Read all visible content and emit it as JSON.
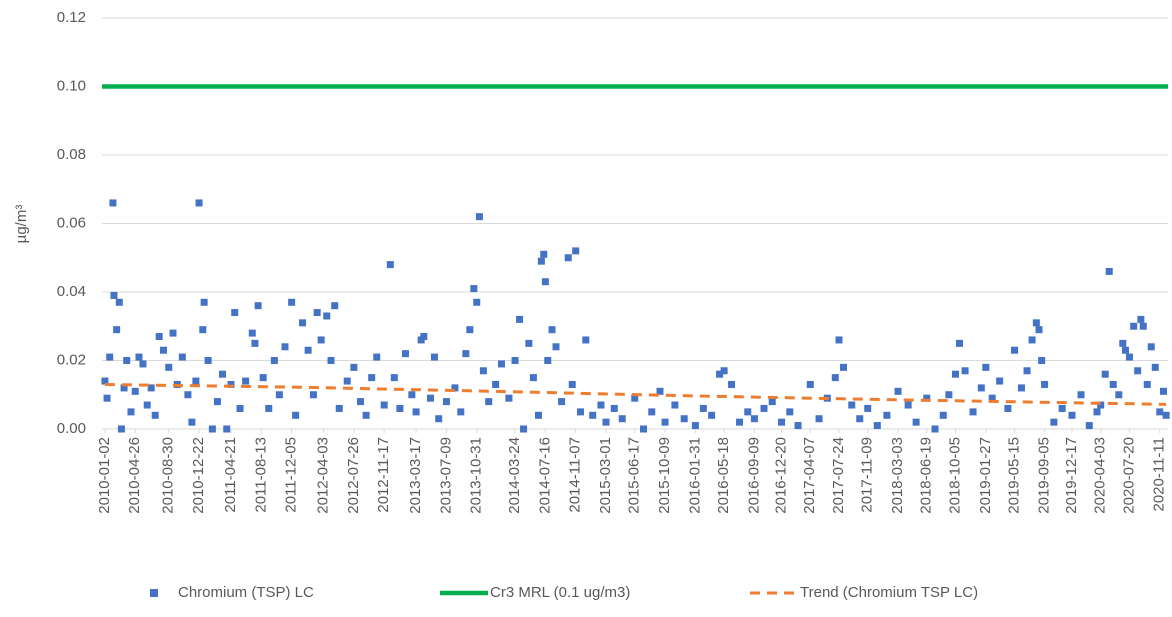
{
  "chart_data": {
    "type": "scatter",
    "y_label": "µg/m³",
    "ylim": [
      0,
      0.12
    ],
    "yticks": [
      {
        "value": 0,
        "label": "0.00"
      },
      {
        "value": 0.02,
        "label": "0.02"
      },
      {
        "value": 0.04,
        "label": "0.04"
      },
      {
        "value": 0.06,
        "label": "0.06"
      },
      {
        "value": 0.08,
        "label": "0.08"
      },
      {
        "value": 0.1,
        "label": "0.10"
      },
      {
        "value": 0.12,
        "label": "0.12"
      }
    ],
    "xlim": [
      "2009-12-22",
      "2020-12-12"
    ],
    "xticks": [
      "2010-01-02",
      "2010-04-26",
      "2010-08-30",
      "2010-12-22",
      "2011-04-21",
      "2011-08-13",
      "2011-12-05",
      "2012-04-03",
      "2012-07-26",
      "2012-11-17",
      "2013-03-17",
      "2013-07-09",
      "2013-10-31",
      "2014-03-24",
      "2014-07-16",
      "2014-11-07",
      "2015-03-01",
      "2015-06-17",
      "2015-10-09",
      "2016-01-31",
      "2016-05-18",
      "2016-09-09",
      "2016-12-20",
      "2017-04-07",
      "2017-07-24",
      "2017-11-09",
      "2018-03-03",
      "2018-06-19",
      "2018-10-05",
      "2019-01-27",
      "2019-05-15",
      "2019-09-05",
      "2019-12-17",
      "2020-04-03",
      "2020-07-20",
      "2020-11-11"
    ],
    "grid": true,
    "legend": "bottom",
    "series": [
      {
        "name": "Chromium (TSP) LC",
        "type": "scatter",
        "color": "#4472c4",
        "x": [
          "2010-01-02",
          "2010-01-10",
          "2010-01-20",
          "2010-02-01",
          "2010-02-05",
          "2010-02-15",
          "2010-02-25",
          "2010-03-05",
          "2010-03-15",
          "2010-03-25",
          "2010-04-10",
          "2010-04-26",
          "2010-05-10",
          "2010-05-25",
          "2010-06-10",
          "2010-06-25",
          "2010-07-10",
          "2010-07-25",
          "2010-08-10",
          "2010-08-30",
          "2010-09-15",
          "2010-10-01",
          "2010-10-20",
          "2010-11-10",
          "2010-11-25",
          "2010-12-10",
          "2010-12-22",
          "2011-01-05",
          "2011-01-10",
          "2011-01-25",
          "2011-02-10",
          "2011-03-01",
          "2011-03-20",
          "2011-04-05",
          "2011-04-21",
          "2011-05-05",
          "2011-05-25",
          "2011-06-15",
          "2011-07-10",
          "2011-07-20",
          "2011-08-01",
          "2011-08-20",
          "2011-09-10",
          "2011-10-01",
          "2011-10-20",
          "2011-11-10",
          "2011-12-05",
          "2011-12-20",
          "2012-01-15",
          "2012-02-05",
          "2012-02-25",
          "2012-03-10",
          "2012-03-25",
          "2012-04-15",
          "2012-05-01",
          "2012-05-15",
          "2012-06-01",
          "2012-07-01",
          "2012-07-26",
          "2012-08-20",
          "2012-09-10",
          "2012-10-01",
          "2012-10-20",
          "2012-11-17",
          "2012-12-10",
          "2012-12-25",
          "2013-01-15",
          "2013-02-05",
          "2013-03-01",
          "2013-03-17",
          "2013-04-05",
          "2013-04-15",
          "2013-05-10",
          "2013-05-25",
          "2013-06-10",
          "2013-07-09",
          "2013-08-10",
          "2013-09-01",
          "2013-09-20",
          "2013-10-05",
          "2013-10-20",
          "2013-10-31",
          "2013-11-10",
          "2013-11-25",
          "2013-12-15",
          "2014-01-10",
          "2014-02-01",
          "2014-03-01",
          "2014-03-24",
          "2014-04-10",
          "2014-04-25",
          "2014-05-15",
          "2014-06-01",
          "2014-06-20",
          "2014-07-01",
          "2014-07-10",
          "2014-07-16",
          "2014-07-25",
          "2014-08-10",
          "2014-08-25",
          "2014-09-15",
          "2014-10-10",
          "2014-10-25",
          "2014-11-07",
          "2014-11-25",
          "2014-12-15",
          "2015-01-10",
          "2015-02-10",
          "2015-03-01",
          "2015-04-01",
          "2015-05-01",
          "2015-06-17",
          "2015-07-20",
          "2015-08-20",
          "2015-09-20",
          "2015-10-09",
          "2015-11-15",
          "2015-12-20",
          "2016-01-31",
          "2016-03-01",
          "2016-04-01",
          "2016-05-01",
          "2016-05-18",
          "2016-06-15",
          "2016-07-15",
          "2016-08-15",
          "2016-09-09",
          "2016-10-15",
          "2016-11-15",
          "2016-12-20",
          "2017-01-20",
          "2017-02-20",
          "2017-04-07",
          "2017-05-10",
          "2017-06-10",
          "2017-07-10",
          "2017-07-24",
          "2017-08-10",
          "2017-09-10",
          "2017-10-10",
          "2017-11-09",
          "2017-12-15",
          "2018-01-20",
          "2018-03-03",
          "2018-04-10",
          "2018-05-10",
          "2018-06-19",
          "2018-07-20",
          "2018-08-20",
          "2018-09-10",
          "2018-10-05",
          "2018-10-20",
          "2018-11-10",
          "2018-12-10",
          "2019-01-10",
          "2019-01-27",
          "2019-02-20",
          "2019-03-20",
          "2019-04-20",
          "2019-05-15",
          "2019-06-10",
          "2019-07-01",
          "2019-07-20",
          "2019-08-05",
          "2019-08-15",
          "2019-08-25",
          "2019-09-05",
          "2019-10-10",
          "2019-11-10",
          "2019-12-17",
          "2020-01-20",
          "2020-02-20",
          "2020-03-20",
          "2020-04-03",
          "2020-04-20",
          "2020-05-05",
          "2020-05-20",
          "2020-06-10",
          "2020-06-25",
          "2020-07-05",
          "2020-07-20",
          "2020-08-05",
          "2020-08-20",
          "2020-09-01",
          "2020-09-10",
          "2020-09-25",
          "2020-10-10",
          "2020-10-25",
          "2020-11-11",
          "2020-11-25",
          "2020-12-05"
        ],
        "values": [
          0.014,
          0.009,
          0.021,
          0.066,
          0.039,
          0.029,
          0.037,
          0.0,
          0.012,
          0.02,
          0.005,
          0.011,
          0.021,
          0.019,
          0.007,
          0.012,
          0.004,
          0.027,
          0.023,
          0.018,
          0.028,
          0.013,
          0.021,
          0.01,
          0.002,
          0.014,
          0.066,
          0.029,
          0.037,
          0.02,
          0.0,
          0.008,
          0.016,
          0.0,
          0.013,
          0.034,
          0.006,
          0.014,
          0.028,
          0.025,
          0.036,
          0.015,
          0.006,
          0.02,
          0.01,
          0.024,
          0.037,
          0.004,
          0.031,
          0.023,
          0.01,
          0.034,
          0.026,
          0.033,
          0.02,
          0.036,
          0.006,
          0.014,
          0.018,
          0.008,
          0.004,
          0.015,
          0.021,
          0.007,
          0.048,
          0.015,
          0.006,
          0.022,
          0.01,
          0.005,
          0.026,
          0.027,
          0.009,
          0.021,
          0.003,
          0.008,
          0.012,
          0.005,
          0.022,
          0.029,
          0.041,
          0.037,
          0.062,
          0.017,
          0.008,
          0.013,
          0.019,
          0.009,
          0.02,
          0.032,
          0.0,
          0.025,
          0.015,
          0.004,
          0.049,
          0.051,
          0.043,
          0.02,
          0.029,
          0.024,
          0.008,
          0.05,
          0.013,
          0.052,
          0.005,
          0.026,
          0.004,
          0.007,
          0.002,
          0.006,
          0.003,
          0.009,
          0.0,
          0.005,
          0.011,
          0.002,
          0.007,
          0.003,
          0.001,
          0.006,
          0.004,
          0.016,
          0.017,
          0.013,
          0.002,
          0.005,
          0.003,
          0.006,
          0.008,
          0.002,
          0.005,
          0.001,
          0.013,
          0.003,
          0.009,
          0.015,
          0.026,
          0.018,
          0.007,
          0.003,
          0.006,
          0.001,
          0.004,
          0.011,
          0.007,
          0.002,
          0.009,
          0.0,
          0.004,
          0.01,
          0.016,
          0.025,
          0.017,
          0.005,
          0.012,
          0.018,
          0.009,
          0.014,
          0.006,
          0.023,
          0.012,
          0.017,
          0.026,
          0.031,
          0.029,
          0.02,
          0.013,
          0.002,
          0.006,
          0.004,
          0.01,
          0.001,
          0.005,
          0.007,
          0.016,
          0.046,
          0.013,
          0.01,
          0.025,
          0.023,
          0.021,
          0.03,
          0.017,
          0.032,
          0.03,
          0.013,
          0.024,
          0.018,
          0.005,
          0.011,
          0.004
        ]
      },
      {
        "name": "Cr3 MRL (0.1 ug/m3)",
        "type": "line",
        "color": "#00b050",
        "x": [
          "2009-12-22",
          "2020-12-12"
        ],
        "values": [
          0.1,
          0.1
        ]
      },
      {
        "name": "Trend (Chromium TSP LC)",
        "type": "line",
        "dashed": true,
        "color": "#ed7d31",
        "x": [
          "2010-01-02",
          "2012-01-01",
          "2014-01-01",
          "2016-01-01",
          "2018-01-01",
          "2020-12-05"
        ],
        "values": [
          0.013,
          0.0122,
          0.011,
          0.0097,
          0.0086,
          0.0072
        ]
      }
    ]
  }
}
